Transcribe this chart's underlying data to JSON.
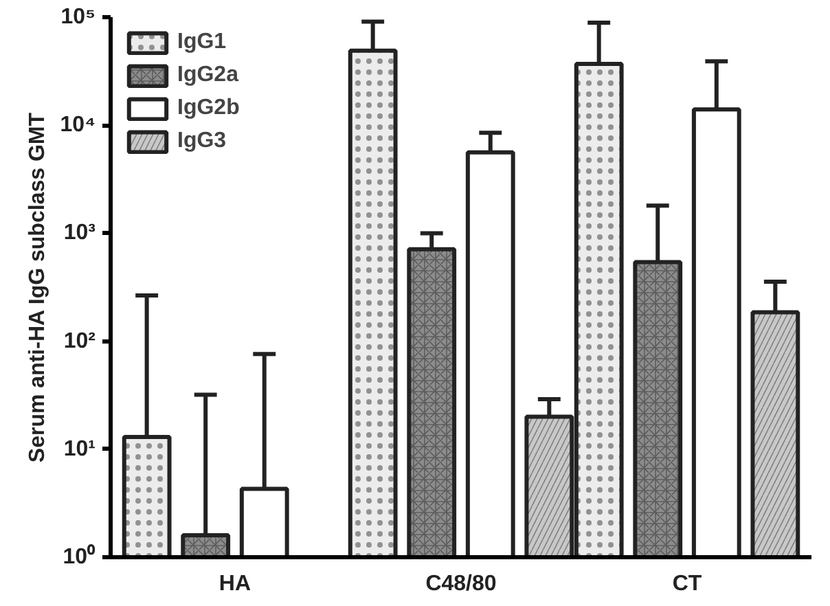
{
  "chart_data": {
    "type": "bar",
    "ylabel": "Serum anti-HA IgG subclass GMT",
    "categories": [
      "HA",
      "C48/80",
      "CT"
    ],
    "log": true,
    "ylim": [
      1,
      100000
    ],
    "yticks": [
      {
        "value": 1,
        "label": "10⁰"
      },
      {
        "value": 10,
        "label": "10¹"
      },
      {
        "value": 100,
        "label": "10²"
      },
      {
        "value": 1000,
        "label": "10³"
      },
      {
        "value": 10000,
        "label": "10⁴"
      },
      {
        "value": 100000,
        "label": "10⁵"
      }
    ],
    "grid": false,
    "legend": "top left",
    "series": [
      {
        "name": "IgG1",
        "color": "#ececec",
        "values": [
          13,
          49000,
          37000
        ],
        "errors": [
          [
            13,
            265
          ],
          [
            49000,
            91000
          ],
          [
            37000,
            89000
          ]
        ]
      },
      {
        "name": "IgG2a",
        "color": "#8c8c8c",
        "values": [
          1.6,
          710,
          540
        ],
        "errors": [
          [
            1.6,
            32
          ],
          [
            710,
            1000
          ],
          [
            540,
            1800
          ]
        ]
      },
      {
        "name": "IgG2b",
        "color": "#ffffff",
        "values": [
          4.3,
          5600,
          14000
        ],
        "errors": [
          [
            4.3,
            76
          ],
          [
            5600,
            8500
          ],
          [
            14000,
            39000
          ]
        ]
      },
      {
        "name": "IgG3",
        "color": "#c8c8c8",
        "values": [
          null,
          20,
          185
        ],
        "errors": [
          null,
          [
            20,
            29
          ],
          [
            185,
            355
          ]
        ]
      }
    ]
  }
}
